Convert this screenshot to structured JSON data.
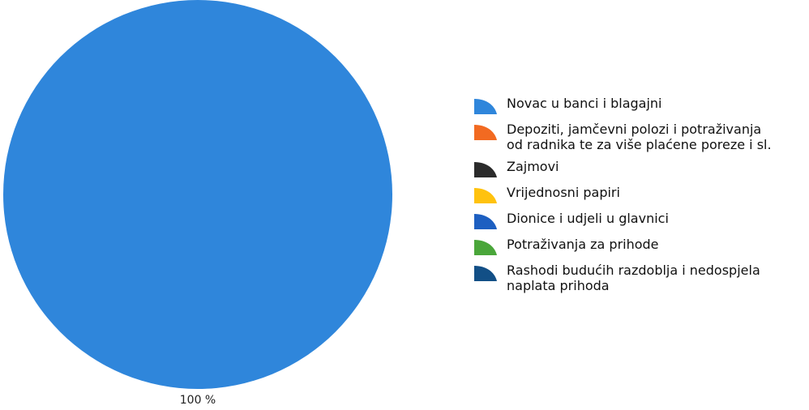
{
  "chart_data": {
    "type": "pie",
    "slices": [
      {
        "label": "Novac u banci i blagajni",
        "value": 100,
        "display": "100 %",
        "color": "#2f86db"
      },
      {
        "label": "Depoziti, jamčevni polozi i potraživanja\nod radnika te za više plaćene poreze i sl.",
        "value": 0,
        "display": "",
        "color": "#f26a21"
      },
      {
        "label": "Zajmovi",
        "value": 0,
        "display": "",
        "color": "#2b2b2b"
      },
      {
        "label": "Vrijednosni papiri",
        "value": 0,
        "display": "",
        "color": "#ffc20e"
      },
      {
        "label": "Dionice i udjeli u glavnici",
        "value": 0,
        "display": "",
        "color": "#1d5fc1"
      },
      {
        "label": "Potraživanja za prihode",
        "value": 0,
        "display": "",
        "color": "#4aa63a"
      },
      {
        "label": "Rashodi budućih razdoblja i nedospjela\nnaplata prihoda",
        "value": 0,
        "display": "",
        "color": "#124f86"
      }
    ],
    "legend_position": "right"
  }
}
